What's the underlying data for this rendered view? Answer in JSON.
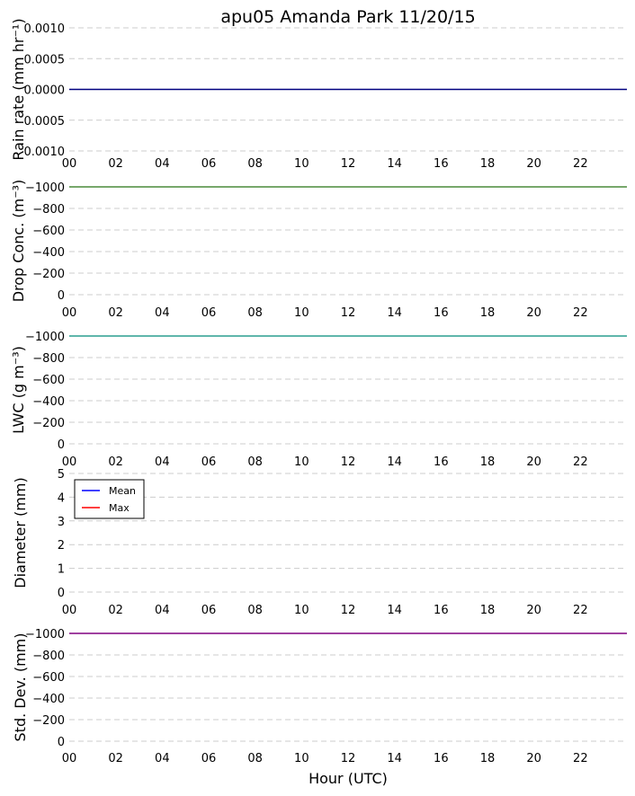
{
  "figure": {
    "title": "apu05 Amanda Park 11/20/15",
    "xlabel": "Hour (UTC)"
  },
  "chart_data": [
    {
      "type": "line",
      "ylabel": "Rain rate (mm hr⁻¹)",
      "xlim": [
        0,
        24
      ],
      "ylim": [
        0.001,
        -0.001
      ],
      "grid": true,
      "x_ticks": [
        "00",
        "02",
        "04",
        "06",
        "08",
        "10",
        "12",
        "14",
        "16",
        "18",
        "20",
        "22"
      ],
      "y_ticks": [
        "0.0010",
        "0.0005",
        "0.0000",
        "0.0005",
        "0.0010"
      ],
      "series": [
        {
          "color": "#000080",
          "x": [
            0,
            24
          ],
          "y": [
            0,
            0
          ]
        }
      ]
    },
    {
      "type": "line",
      "ylabel": "Drop Conc. (m⁻³)",
      "xlim": [
        0,
        24
      ],
      "ylim": [
        -1000,
        0
      ],
      "grid": true,
      "x_ticks": [
        "00",
        "02",
        "04",
        "06",
        "08",
        "10",
        "12",
        "14",
        "16",
        "18",
        "20",
        "22"
      ],
      "y_ticks": [
        "−1000",
        "−800",
        "−600",
        "−400",
        "−200",
        "0"
      ],
      "series": [
        {
          "color": "#4a8a3a",
          "x": [
            0,
            24
          ],
          "y": [
            -1000,
            -1000
          ]
        }
      ]
    },
    {
      "type": "line",
      "ylabel": "LWC (g m⁻³)",
      "xlim": [
        0,
        24
      ],
      "ylim": [
        -1000,
        0
      ],
      "grid": true,
      "x_ticks": [
        "00",
        "02",
        "04",
        "06",
        "08",
        "10",
        "12",
        "14",
        "16",
        "18",
        "20",
        "22"
      ],
      "y_ticks": [
        "−1000",
        "−800",
        "−600",
        "−400",
        "−200",
        "0"
      ],
      "series": [
        {
          "color": "#2a9d8f",
          "x": [
            0,
            24
          ],
          "y": [
            -1000,
            -1000
          ]
        }
      ]
    },
    {
      "type": "line",
      "ylabel": "Diameter (mm)",
      "xlim": [
        0,
        24
      ],
      "ylim": [
        5,
        0
      ],
      "grid": true,
      "x_ticks": [
        "00",
        "02",
        "04",
        "06",
        "08",
        "10",
        "12",
        "14",
        "16",
        "18",
        "20",
        "22"
      ],
      "y_ticks": [
        "5",
        "4",
        "3",
        "2",
        "1",
        "0"
      ],
      "legend": {
        "placement": "upper-left",
        "entries": [
          {
            "label": "Mean",
            "color": "#0000ff"
          },
          {
            "label": "Max",
            "color": "#ff0000"
          }
        ]
      },
      "series": [
        {
          "name": "Mean",
          "color": "#0000ff",
          "x": [],
          "y": []
        },
        {
          "name": "Max",
          "color": "#ff0000",
          "x": [],
          "y": []
        }
      ]
    },
    {
      "type": "line",
      "ylabel": "Std. Dev. (mm)",
      "xlim": [
        0,
        24
      ],
      "ylim": [
        -1000,
        0
      ],
      "grid": true,
      "x_ticks": [
        "00",
        "02",
        "04",
        "06",
        "08",
        "10",
        "12",
        "14",
        "16",
        "18",
        "20",
        "22"
      ],
      "y_ticks": [
        "−1000",
        "−800",
        "−600",
        "−400",
        "−200",
        "0"
      ],
      "series": [
        {
          "color": "#800080",
          "x": [
            0,
            24
          ],
          "y": [
            -1000,
            -1000
          ]
        }
      ]
    }
  ]
}
